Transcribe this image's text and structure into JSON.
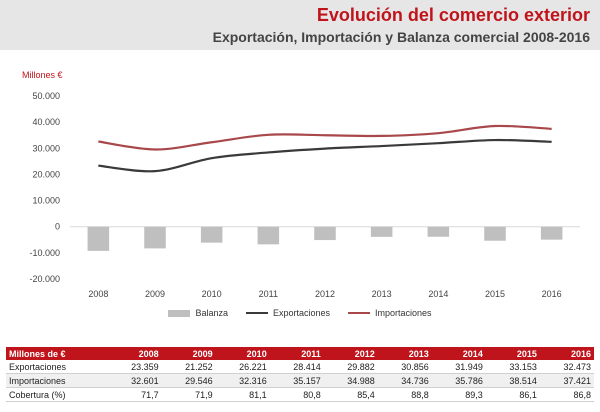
{
  "header": {
    "title": "Evolución del comercio exterior",
    "subtitle": "Exportación, Importación y Balanza comercial  2008-2016"
  },
  "chart_data": {
    "type": "bar+line",
    "ylabel": "Millones €",
    "ylim": [
      -20000,
      50000
    ],
    "yticks": [
      "50.000",
      "40.000",
      "30.000",
      "20.000",
      "10.000",
      "0",
      "-10.000",
      "-20.000"
    ],
    "categories": [
      "2008",
      "2009",
      "2010",
      "2011",
      "2012",
      "2013",
      "2014",
      "2015",
      "2016"
    ],
    "series": [
      {
        "name": "Balanza",
        "kind": "bar",
        "color": "#bfbfbf",
        "values": [
          -9242,
          -8294,
          -6095,
          -6743,
          -5106,
          -3880,
          -3837,
          -5361,
          -4948
        ]
      },
      {
        "name": "Exportaciones",
        "kind": "line",
        "color": "#3a3a3a",
        "values": [
          23359,
          21252,
          26221,
          28414,
          29882,
          30856,
          31949,
          33153,
          32473
        ]
      },
      {
        "name": "Importaciones",
        "kind": "line",
        "color": "#a8484b",
        "values": [
          32601,
          29546,
          32316,
          35157,
          34988,
          34736,
          35786,
          38514,
          37421
        ]
      }
    ],
    "legend_position": "bottom",
    "grid": false
  },
  "table": {
    "header": [
      "Millones de €",
      "2008",
      "2009",
      "2010",
      "2011",
      "2012",
      "2013",
      "2014",
      "2015",
      "2016"
    ],
    "rows": [
      [
        "Exportaciones",
        "23.359",
        "21.252",
        "26.221",
        "28.414",
        "29.882",
        "30.856",
        "31.949",
        "33.153",
        "32.473"
      ],
      [
        "Importaciones",
        "32.601",
        "29.546",
        "32.316",
        "35.157",
        "34.988",
        "34.736",
        "35.786",
        "38.514",
        "37.421"
      ],
      [
        "Cobertura (%)",
        "71,7",
        "71,9",
        "81,1",
        "80,8",
        "85,4",
        "88,8",
        "89,3",
        "86,1",
        "86,8"
      ]
    ]
  }
}
